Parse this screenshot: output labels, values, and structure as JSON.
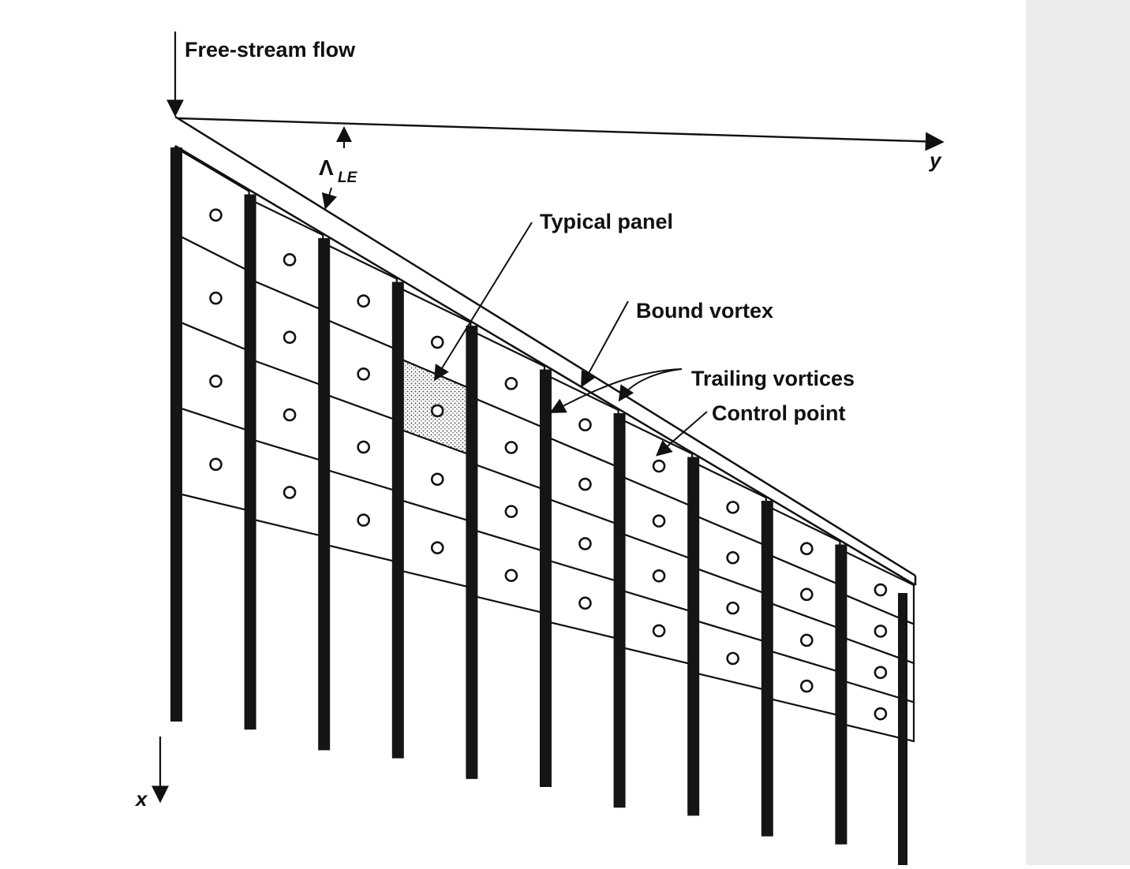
{
  "labels": {
    "freestream": "Free-stream flow",
    "sweep_symbol": "Λ",
    "sweep_sub": "LE",
    "y_axis": "y",
    "x_axis": "x",
    "typical_panel": "Typical panel",
    "bound_vortex": "Bound vortex",
    "trailing_vortices": "Trailing vortices",
    "control_point": "Control point"
  },
  "colors": {
    "ink": "#111111",
    "paper": "#ffffff",
    "shading": "#9a9a9a",
    "page_shadow": "#e9e9e9"
  },
  "grid": {
    "spanwise_strips": 10,
    "chordwise_panels_per_strip": 4
  }
}
